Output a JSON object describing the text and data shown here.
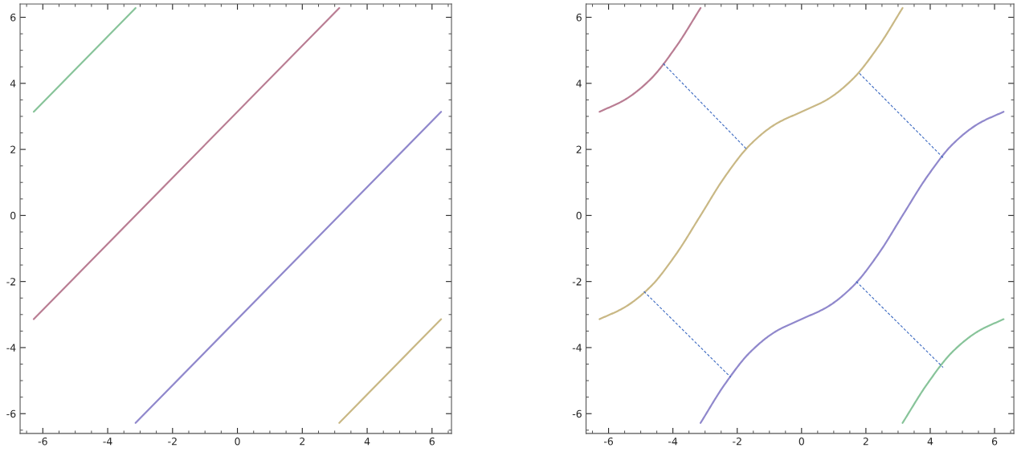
{
  "chart_data": [
    {
      "type": "line",
      "xlim": [
        -6.7,
        6.6
      ],
      "ylim": [
        -6.6,
        6.4
      ],
      "xticks": [
        -6,
        -4,
        -2,
        0,
        2,
        4,
        6
      ],
      "yticks": [
        -6,
        -4,
        -2,
        0,
        2,
        4,
        6
      ],
      "grid": false,
      "legend": false,
      "series": [
        {
          "color": "#88c49a",
          "x": [
            -6.28,
            -3.14
          ],
          "values": [
            3.14,
            6.28
          ]
        },
        {
          "color": "#b97d93",
          "x": [
            -6.28,
            3.14
          ],
          "values": [
            -3.14,
            6.28
          ]
        },
        {
          "color": "#9088cc",
          "x": [
            -3.14,
            6.28
          ],
          "values": [
            -6.28,
            3.14
          ]
        },
        {
          "color": "#c9b885",
          "x": [
            3.14,
            6.28
          ],
          "values": [
            -6.28,
            -3.14
          ]
        }
      ]
    },
    {
      "type": "line",
      "xlim": [
        -6.7,
        6.6
      ],
      "ylim": [
        -6.6,
        6.4
      ],
      "xticks": [
        -6,
        -4,
        -2,
        0,
        2,
        4,
        6
      ],
      "yticks": [
        -6,
        -4,
        -2,
        0,
        2,
        4,
        6
      ],
      "grid": false,
      "legend": false,
      "series": [
        {
          "color": "#b97d93",
          "x": [
            -6.28,
            -5.5,
            -4.7,
            -3.9,
            -3.14
          ],
          "values": [
            3.14,
            3.5,
            4.12,
            5.11,
            6.28
          ]
        },
        {
          "color": "#c9b885",
          "x": [
            -6.28,
            -5.5,
            -4.7,
            -3.9,
            -3.14,
            -2.4,
            -1.6,
            -0.8,
            0,
            0.8,
            1.6,
            2.4,
            3.14
          ],
          "values": [
            -3.14,
            -2.78,
            -2.16,
            -1.17,
            0,
            1.15,
            2.14,
            2.77,
            3.14,
            3.51,
            4.14,
            5.13,
            6.28
          ]
        },
        {
          "color": "#9088cc",
          "x": [
            -3.14,
            -2.4,
            -1.6,
            -0.8,
            0,
            0.8,
            1.6,
            2.4,
            3.14,
            3.9,
            4.7,
            5.5,
            6.28
          ],
          "values": [
            -6.28,
            -5.13,
            -4.14,
            -3.51,
            -3.14,
            -2.77,
            -2.14,
            -1.15,
            0,
            1.17,
            2.16,
            2.78,
            3.14
          ]
        },
        {
          "color": "#88c49a",
          "x": [
            3.14,
            3.9,
            4.7,
            5.5,
            6.28
          ],
          "values": [
            -6.28,
            -5.11,
            -4.12,
            -3.5,
            -3.14
          ]
        },
        {
          "color": "#3a68c0",
          "line_style": "dashed",
          "x": [
            -4.3,
            -1.7
          ],
          "values": [
            4.6,
            2.0
          ]
        },
        {
          "color": "#3a68c0",
          "line_style": "dashed",
          "x": [
            1.8,
            4.4
          ],
          "values": [
            4.3,
            1.75
          ]
        },
        {
          "color": "#3a68c0",
          "line_style": "dashed",
          "x": [
            -4.9,
            -2.2
          ],
          "values": [
            -2.3,
            -4.9
          ]
        },
        {
          "color": "#3a68c0",
          "line_style": "dashed",
          "x": [
            1.7,
            4.4
          ],
          "values": [
            -2.0,
            -4.6
          ]
        }
      ]
    }
  ]
}
